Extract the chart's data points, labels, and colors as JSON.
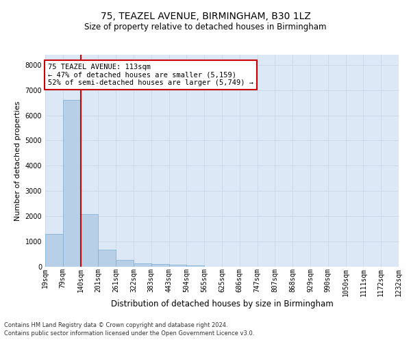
{
  "title1": "75, TEAZEL AVENUE, BIRMINGHAM, B30 1LZ",
  "title2": "Size of property relative to detached houses in Birmingham",
  "xlabel": "Distribution of detached houses by size in Birmingham",
  "ylabel": "Number of detached properties",
  "footnote1": "Contains HM Land Registry data © Crown copyright and database right 2024.",
  "footnote2": "Contains public sector information licensed under the Open Government Licence v3.0.",
  "annotation_line1": "75 TEAZEL AVENUE: 113sqm",
  "annotation_line2": "← 47% of detached houses are smaller (5,159)",
  "annotation_line3": "52% of semi-detached houses are larger (5,749) →",
  "bar_values": [
    1300,
    6600,
    2080,
    690,
    280,
    145,
    100,
    75,
    60,
    0,
    0,
    0,
    0,
    0,
    0,
    0,
    0,
    0,
    0,
    0
  ],
  "bin_labels": [
    "19sqm",
    "79sqm",
    "140sqm",
    "201sqm",
    "261sqm",
    "322sqm",
    "383sqm",
    "443sqm",
    "504sqm",
    "565sqm",
    "625sqm",
    "686sqm",
    "747sqm",
    "807sqm",
    "868sqm",
    "929sqm",
    "990sqm",
    "1050sqm",
    "1111sqm",
    "1172sqm",
    "1232sqm"
  ],
  "n_bins": 20,
  "bar_color": "#b8cfe8",
  "bar_edge_color": "#7aadd4",
  "vline_color": "#cc0000",
  "vline_x_index": 1.5,
  "annotation_box_color": "#cc0000",
  "ylim": [
    0,
    8400
  ],
  "yticks": [
    0,
    1000,
    2000,
    3000,
    4000,
    5000,
    6000,
    7000,
    8000
  ],
  "grid_color": "#ccd9e8",
  "plot_bg_color": "#dce8f5",
  "title1_fontsize": 10,
  "title2_fontsize": 8.5,
  "xlabel_fontsize": 8.5,
  "ylabel_fontsize": 8,
  "tick_fontsize": 7,
  "annotation_fontsize": 7.5,
  "footnote_fontsize": 6
}
